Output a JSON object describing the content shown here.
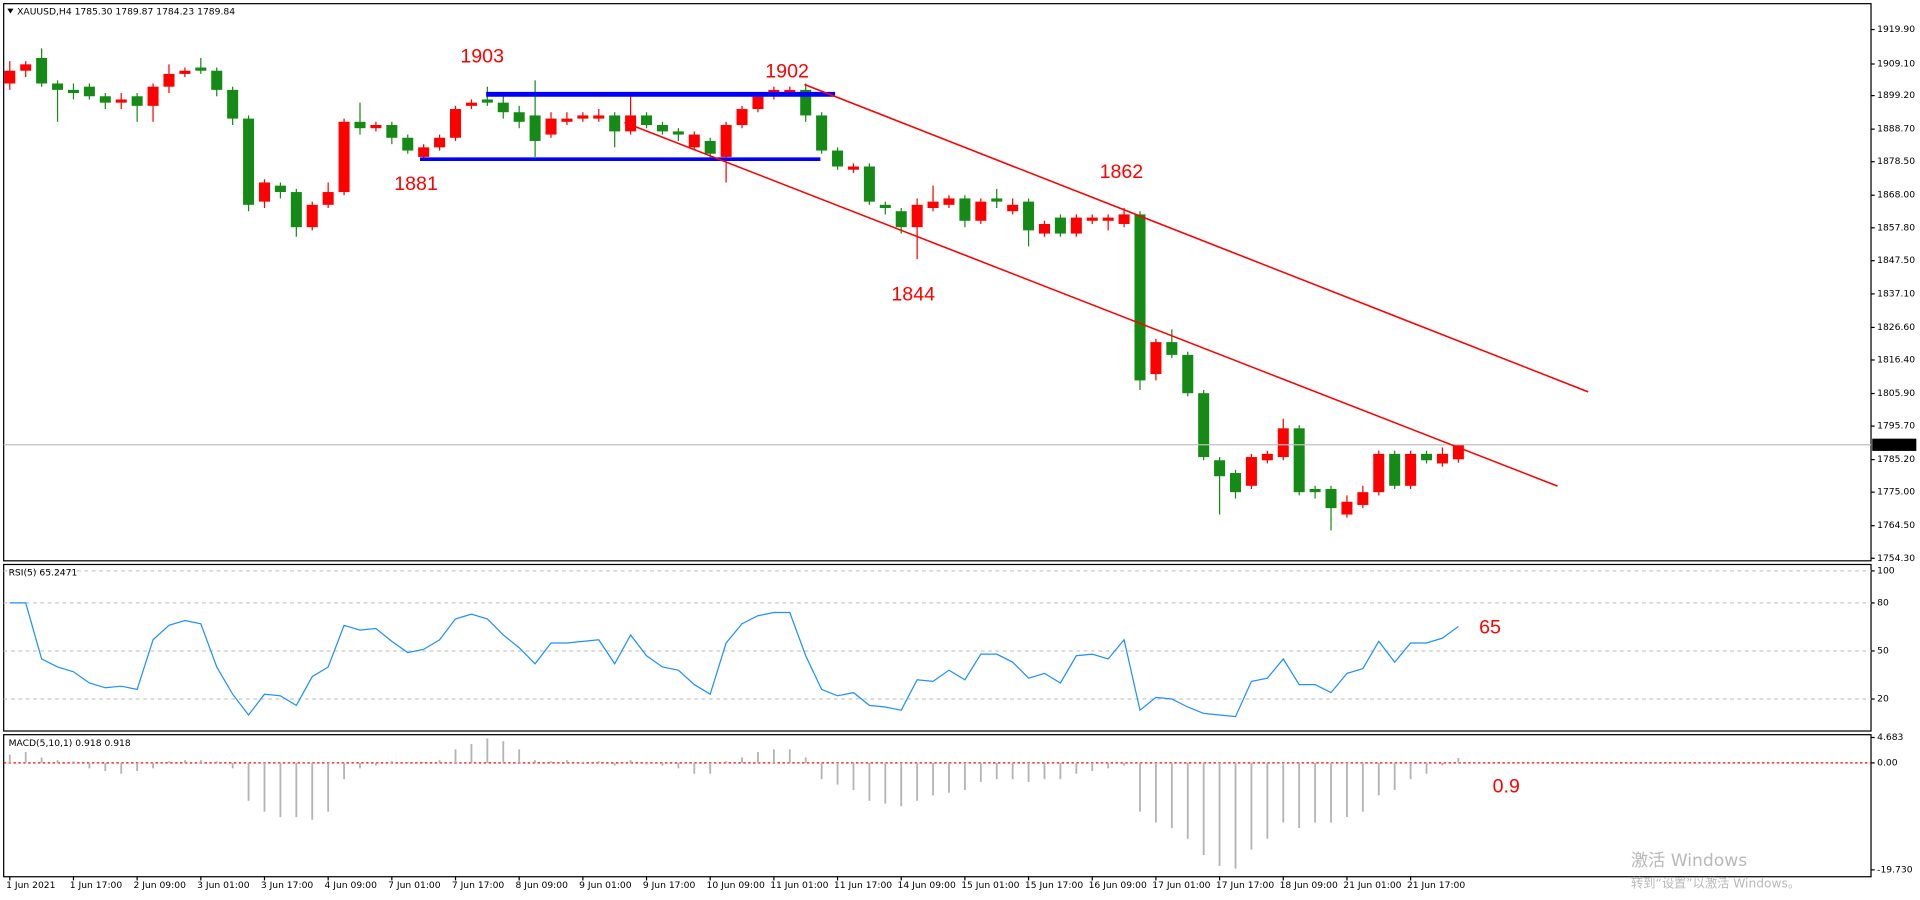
{
  "chart_data": [
    {
      "type": "candlestick",
      "title": "XAUUSD,H4  1785.30 1789.87 1784.23 1789.84",
      "categories": [
        "1 Jun 2021",
        null,
        null,
        null,
        "1 Jun 17:00",
        null,
        null,
        null,
        "2 Jun 09:00",
        null,
        null,
        null,
        "3 Jun 01:00",
        null,
        null,
        null,
        "3 Jun 17:00",
        null,
        null,
        null,
        "4 Jun 09:00",
        null,
        null,
        null,
        "7 Jun 01:00",
        null,
        null,
        null,
        "7 Jun 17:00",
        null,
        null,
        null,
        "8 Jun 09:00",
        null,
        null,
        null,
        "9 Jun 01:00",
        null,
        null,
        null,
        "9 Jun 17:00",
        null,
        null,
        null,
        "10 Jun 09:00",
        null,
        null,
        null,
        "11 Jun 01:00",
        null,
        null,
        null,
        "11 Jun 17:00",
        null,
        null,
        null,
        "14 Jun 09:00",
        null,
        null,
        null,
        "15 Jun 01:00",
        null,
        null,
        null,
        "15 Jun 17:00",
        null,
        null,
        null,
        "16 Jun 09:00",
        null,
        null,
        null,
        "17 Jun 01:00",
        null,
        null,
        null,
        "17 Jun 17:00",
        null,
        null,
        null,
        "18 Jun 09:00",
        null,
        null,
        null,
        "21 Jun 01:00",
        null,
        null,
        null,
        "21 Jun 17:00",
        null,
        null,
        null
      ],
      "open": [
        1903,
        1907,
        1911,
        1903,
        1901,
        1902,
        1899,
        1897,
        1899,
        1896,
        1902,
        1906,
        1908,
        1907,
        1901,
        1892,
        1866,
        1871,
        1869,
        1858,
        1865,
        1869,
        1891,
        1889,
        1890,
        1886,
        1880,
        1883,
        1886,
        1896,
        1898,
        1897,
        1894,
        1893,
        1887,
        1891,
        1892,
        1892,
        1893,
        1888,
        1893,
        1890,
        1888,
        1883,
        1885,
        1880,
        1890,
        1895,
        1899,
        1900,
        1901,
        1893,
        1882,
        1876,
        1877,
        1865,
        1863,
        1858,
        1864,
        1865,
        1867,
        1860,
        1867,
        1863,
        1866,
        1856,
        1861,
        1856,
        1860,
        1860,
        1859,
        1862,
        1812,
        1822,
        1818,
        1806,
        1785,
        1781,
        1777,
        1785,
        1786,
        1795,
        1776,
        1776,
        1768,
        1771,
        1775,
        1787,
        1777,
        1787,
        1784,
        1785.3
      ],
      "high": [
        1910,
        1910,
        1914,
        1904,
        1903,
        1903,
        1900,
        1900,
        1900,
        1903,
        1909,
        1908,
        1911,
        1908,
        1902,
        1893,
        1873,
        1872,
        1870,
        1866,
        1872,
        1892,
        1897,
        1891,
        1891,
        1887,
        1884,
        1887,
        1896,
        1898,
        1902,
        1899,
        1896,
        1904,
        1894,
        1894,
        1894,
        1895,
        1894,
        1899,
        1894,
        1891,
        1889,
        1888,
        1886,
        1891,
        1896,
        1900,
        1902,
        1902,
        1903,
        1894,
        1883,
        1878,
        1878,
        1866,
        1864,
        1867,
        1871,
        1868,
        1868,
        1867,
        1870,
        1867,
        1867,
        1860,
        1862,
        1862,
        1862,
        1862,
        1864,
        1863,
        1823,
        1826,
        1819,
        1807,
        1786,
        1782,
        1787,
        1788,
        1798,
        1796,
        1777,
        1777,
        1774,
        1777,
        1788,
        1788,
        1788,
        1788,
        1789,
        1789.87
      ],
      "low": [
        1901,
        1905,
        1902,
        1891,
        1898,
        1898,
        1895,
        1895,
        1891,
        1891,
        1900,
        1905,
        1906,
        1899,
        1890,
        1863,
        1864,
        1867,
        1855,
        1857,
        1864,
        1868,
        1887,
        1888,
        1884,
        1881,
        1879,
        1882,
        1885,
        1895,
        1896,
        1892,
        1889,
        1880,
        1886,
        1890,
        1891,
        1891,
        1883,
        1887,
        1889,
        1887,
        1885,
        1882,
        1879,
        1872,
        1889,
        1894,
        1898,
        1899,
        1891,
        1881,
        1876,
        1875,
        1865,
        1862,
        1856,
        1848,
        1863,
        1864,
        1858,
        1859,
        1864,
        1862,
        1852,
        1855,
        1855,
        1855,
        1859,
        1857,
        1858,
        1807,
        1810,
        1817,
        1805,
        1785,
        1768,
        1773,
        1776,
        1784,
        1785,
        1774,
        1773,
        1763,
        1767,
        1770,
        1774,
        1776,
        1776,
        1784,
        1783,
        1784.23
      ],
      "close": [
        1907,
        1909,
        1903,
        1901,
        1900,
        1899,
        1897,
        1898,
        1896,
        1902,
        1906,
        1907,
        1907,
        1901,
        1892,
        1865,
        1872,
        1869,
        1858,
        1865,
        1869,
        1891,
        1889,
        1890,
        1886,
        1882,
        1883,
        1886,
        1895,
        1897,
        1897,
        1894,
        1891,
        1885,
        1892,
        1892,
        1893,
        1893,
        1888,
        1893,
        1890,
        1888,
        1887,
        1887,
        1881,
        1890,
        1895,
        1899,
        1901,
        1901,
        1893,
        1882,
        1877,
        1877,
        1866,
        1864,
        1858,
        1865,
        1866,
        1867,
        1860,
        1866,
        1866,
        1865,
        1857,
        1859,
        1856,
        1861,
        1861,
        1861,
        1862,
        1810,
        1822,
        1818,
        1806,
        1786,
        1780,
        1775,
        1786,
        1787,
        1795,
        1775,
        1775,
        1770,
        1772,
        1775,
        1787,
        1777,
        1787,
        1785,
        1787,
        1789.84
      ],
      "up_color": "#ff0000",
      "down_color": "#168a16",
      "ylim": [
        1753.5,
        1928
      ],
      "yticks": [
        {
          "value": 1919.9,
          "label": "1919.90"
        },
        {
          "value": 1909.1,
          "label": "1909.10"
        },
        {
          "value": 1899.2,
          "label": "1899.20"
        },
        {
          "value": 1888.7,
          "label": "1888.70"
        },
        {
          "value": 1878.5,
          "label": "1878.50"
        },
        {
          "value": 1868,
          "label": "1868.00"
        },
        {
          "value": 1857.8,
          "label": "1857.80"
        },
        {
          "value": 1847.5,
          "label": "1847.50"
        },
        {
          "value": 1837.1,
          "label": "1837.10"
        },
        {
          "value": 1826.6,
          "label": "1826.60"
        },
        {
          "value": 1816.4,
          "label": "1816.40"
        },
        {
          "value": 1805.9,
          "label": "1805.90"
        },
        {
          "value": 1795.7,
          "label": "1795.70"
        },
        {
          "value": 1785.2,
          "label": "1785.20"
        },
        {
          "value": 1775,
          "label": "1775.00"
        },
        {
          "value": 1764.5,
          "label": "1764.50"
        },
        {
          "value": 1754.3,
          "label": "1754.30"
        }
      ],
      "grid": false,
      "last_price": {
        "value": 1789.84,
        "label": "1789.84"
      },
      "annotations": [
        "1903",
        "1881",
        "1902",
        "1862",
        "1844"
      ]
    },
    {
      "type": "line",
      "title": "RSI(5) 65.2471",
      "values": [
        80,
        80,
        45,
        40,
        37,
        30,
        27,
        28,
        26,
        57,
        66,
        69,
        67,
        40,
        23,
        10,
        23,
        22,
        16,
        34,
        40,
        66,
        63,
        64,
        56,
        49,
        51,
        57,
        70,
        73,
        70,
        60,
        52,
        42,
        55,
        55,
        56,
        57,
        42,
        60,
        47,
        40,
        38,
        29,
        23,
        55,
        67,
        72,
        74,
        74,
        47,
        26,
        22,
        24,
        16,
        15,
        13,
        32,
        31,
        38,
        32,
        48,
        48,
        43,
        33,
        36,
        30,
        47,
        48,
        45,
        57,
        13,
        21,
        20,
        15,
        11,
        10,
        9,
        31,
        33,
        45,
        29,
        29,
        24,
        36,
        39,
        56,
        43,
        55,
        55,
        58,
        65.2471
      ],
      "color": "#1e90ff",
      "ylim": [
        0,
        104
      ],
      "yticks": [
        100,
        80,
        50,
        20
      ],
      "grid": true,
      "annotations": [
        "65"
      ]
    },
    {
      "type": "histogram",
      "title": "MACD(5,10,1) 0.918 0.918",
      "values": [
        1.5,
        2,
        1,
        0.5,
        0.3,
        -1,
        -1.5,
        -2,
        -1.5,
        -1,
        0.3,
        0.5,
        0.5,
        0.3,
        -1,
        -7,
        -9,
        -10,
        -10,
        -10.5,
        -9,
        -3,
        -1,
        -0.5,
        0.3,
        0.2,
        0.1,
        0.5,
        2.5,
        3.5,
        4.5,
        4,
        2.5,
        0.5,
        0.3,
        0.5,
        0.2,
        0.3,
        -0.5,
        0.5,
        -0.3,
        -0.5,
        -1,
        -2,
        -2,
        0.3,
        1,
        2,
        2.5,
        2.5,
        1,
        -3,
        -4,
        -5,
        -7,
        -7.5,
        -8,
        -7,
        -6,
        -5.5,
        -5,
        -3.5,
        -3,
        -3,
        -3.5,
        -3,
        -3,
        -2,
        -1.5,
        -1,
        -0.5,
        -9,
        -11,
        -12,
        -14,
        -17,
        -19,
        -19.5,
        -16,
        -14,
        -11,
        -12,
        -11,
        -11,
        -10,
        -9,
        -6,
        -5,
        -3,
        -2,
        -0.5,
        0.918
      ],
      "color": "#b4b4b4",
      "zero_line_color": "#ff0000",
      "ylim": [
        -21,
        5.2
      ],
      "yticks": [
        {
          "value": 4.683,
          "label": "4.683"
        },
        {
          "value": 0,
          "label": "0.00"
        },
        {
          "value": -19.73,
          "label": "-19.730"
        }
      ],
      "grid": false,
      "annotations": [
        "0.9"
      ]
    }
  ],
  "watermark": {
    "line1": "激活 Windows",
    "line2": "转到“设置”以激活 Windows。"
  }
}
